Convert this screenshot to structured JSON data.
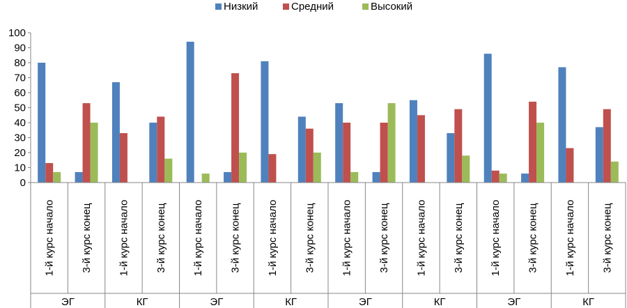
{
  "chart_data": {
    "type": "bar",
    "title": "",
    "xlabel": "",
    "ylabel": "",
    "ylim": [
      0,
      100
    ],
    "yticks": [
      0,
      10,
      20,
      30,
      40,
      50,
      60,
      70,
      80,
      90,
      100
    ],
    "legend_position": "top",
    "categories": [
      {
        "label": "1-й курс начало",
        "group": "ЭГ"
      },
      {
        "label": "3-й курс конец",
        "group": "ЭГ"
      },
      {
        "label": "1-й курс начало",
        "group": "КГ"
      },
      {
        "label": "3-й курс конец",
        "group": "КГ"
      },
      {
        "label": "1-й курс начало",
        "group": "ЭГ"
      },
      {
        "label": "3-й курс конец",
        "group": "ЭГ"
      },
      {
        "label": "1-й курс начало",
        "group": "КГ"
      },
      {
        "label": "3-й курс конец",
        "group": "КГ"
      },
      {
        "label": "1-й курс начало",
        "group": "ЭГ"
      },
      {
        "label": "3-й курс конец",
        "group": "ЭГ"
      },
      {
        "label": "1-й курс начало",
        "group": "КГ"
      },
      {
        "label": "3-й курс конец",
        "group": "КГ"
      },
      {
        "label": "1-й курс начало",
        "group": "ЭГ"
      },
      {
        "label": "3-й курс конец",
        "group": "ЭГ"
      },
      {
        "label": "1-й курс начало",
        "group": "КГ"
      },
      {
        "label": "3-й курс конец",
        "group": "КГ"
      }
    ],
    "groups": [
      "ЭГ",
      "КГ",
      "ЭГ",
      "КГ",
      "ЭГ",
      "КГ",
      "ЭГ",
      "КГ"
    ],
    "series": [
      {
        "name": "Низкий",
        "color": "#4F81BD",
        "values": [
          80,
          7,
          67,
          40,
          94,
          7,
          81,
          44,
          53,
          7,
          55,
          33,
          86,
          6,
          77,
          37
        ]
      },
      {
        "name": "Средний",
        "color": "#C0504D",
        "values": [
          13,
          53,
          33,
          44,
          0,
          73,
          19,
          36,
          40,
          40,
          45,
          49,
          8,
          54,
          23,
          49
        ]
      },
      {
        "name": "Высокий",
        "color": "#9BBB59",
        "values": [
          7,
          40,
          0,
          16,
          6,
          20,
          0,
          20,
          7,
          53,
          0,
          18,
          6,
          40,
          0,
          14
        ]
      }
    ]
  }
}
